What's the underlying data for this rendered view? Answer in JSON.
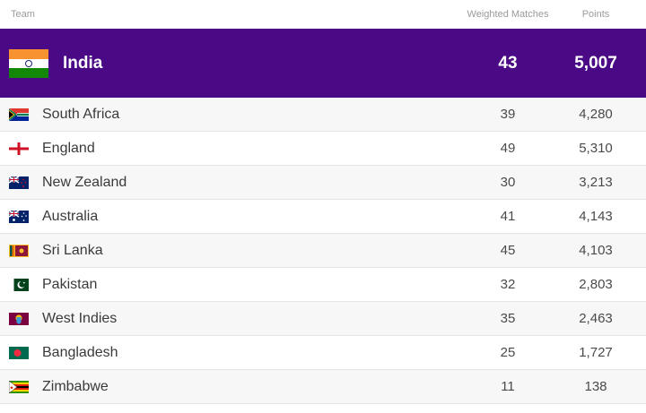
{
  "header": {
    "team": "Team",
    "matches": "Weighted Matches",
    "points": "Points"
  },
  "top": {
    "team": "India",
    "matches": "43",
    "points": "5,007",
    "flag": "india-flag-icon"
  },
  "rows": [
    {
      "team": "South Africa",
      "matches": "39",
      "points": "4,280",
      "flag": "south-africa-flag-icon"
    },
    {
      "team": "England",
      "matches": "49",
      "points": "5,310",
      "flag": "england-flag-icon"
    },
    {
      "team": "New Zealand",
      "matches": "30",
      "points": "3,213",
      "flag": "new-zealand-flag-icon"
    },
    {
      "team": "Australia",
      "matches": "41",
      "points": "4,143",
      "flag": "australia-flag-icon"
    },
    {
      "team": "Sri Lanka",
      "matches": "45",
      "points": "4,103",
      "flag": "sri-lanka-flag-icon"
    },
    {
      "team": "Pakistan",
      "matches": "32",
      "points": "2,803",
      "flag": "pakistan-flag-icon"
    },
    {
      "team": "West Indies",
      "matches": "35",
      "points": "2,463",
      "flag": "west-indies-flag-icon"
    },
    {
      "team": "Bangladesh",
      "matches": "25",
      "points": "1,727",
      "flag": "bangladesh-flag-icon"
    },
    {
      "team": "Zimbabwe",
      "matches": "11",
      "points": "138",
      "flag": "zimbabwe-flag-icon"
    }
  ],
  "colors": {
    "highlight": "#4b0a85"
  }
}
